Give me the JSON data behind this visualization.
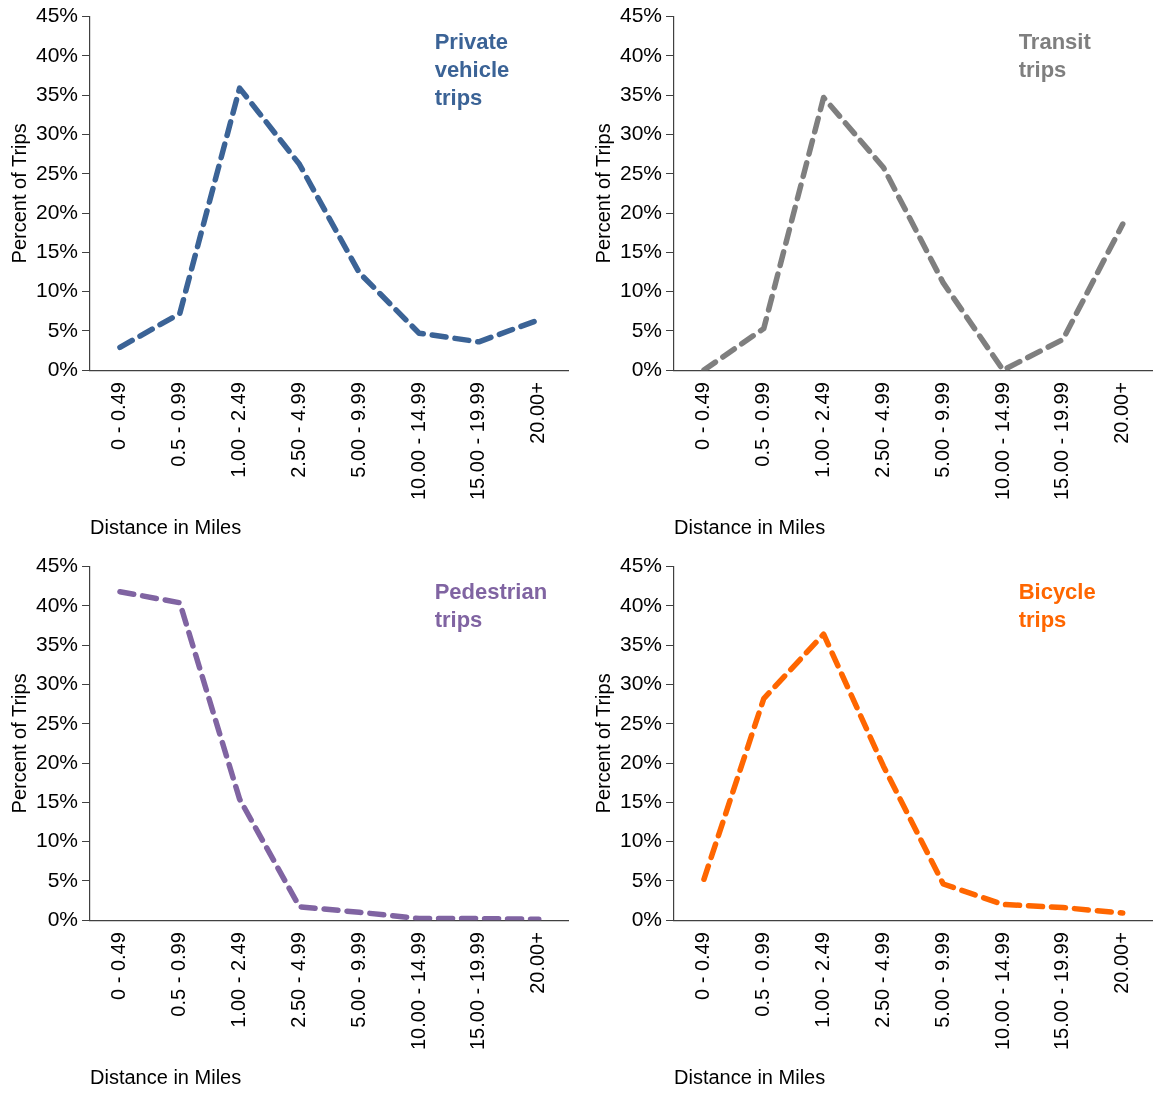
{
  "chart_data": [
    {
      "type": "line",
      "xlabel": "Distance in Miles",
      "ylabel": "Percent of Trips",
      "categories": [
        "0 - 0.49",
        "0.5 - 0.99",
        "1.00 - 2.49",
        "2.50 - 4.99",
        "5.00 - 9.99",
        "10.00 - 14.99",
        "15.00 - 19.99",
        "20.00+"
      ],
      "series": [
        {
          "name": "Private vehicle trips",
          "color": "#3b6396",
          "values": [
            2.9,
            7.2,
            35.9,
            26.2,
            12.4,
            4.7,
            3.6,
            6.4
          ]
        }
      ],
      "ylim": [
        0,
        45
      ],
      "yticks": [
        {
          "value": 0,
          "label": "0%"
        },
        {
          "value": 5,
          "label": "5%"
        },
        {
          "value": 10,
          "label": "10%"
        },
        {
          "value": 15,
          "label": "15%"
        },
        {
          "value": 20,
          "label": "20%"
        },
        {
          "value": 25,
          "label": "25%"
        },
        {
          "value": 30,
          "label": "30%"
        },
        {
          "value": 35,
          "label": "35%"
        },
        {
          "value": 40,
          "label": "40%"
        },
        {
          "value": 45,
          "label": "45%"
        }
      ],
      "grid": false,
      "legend": false,
      "marker": "none",
      "line_style": "dashed"
    },
    {
      "type": "line",
      "xlabel": "Distance in Miles",
      "ylabel": "Percent of Trips",
      "categories": [
        "0 - 0.49",
        "0.5 - 0.99",
        "1.00 - 2.49",
        "2.50 - 4.99",
        "5.00 - 9.99",
        "10.00 - 14.99",
        "15.00 - 19.99",
        "20.00+"
      ],
      "series": [
        {
          "name": "Transit trips",
          "color": "#7f7f7f",
          "values": [
            0,
            5.3,
            34.7,
            25.8,
            11.1,
            0,
            3.9,
            18.6
          ]
        }
      ],
      "ylim": [
        0,
        45
      ],
      "yticks": [
        {
          "value": 0,
          "label": "0%"
        },
        {
          "value": 5,
          "label": "5%"
        },
        {
          "value": 10,
          "label": "10%"
        },
        {
          "value": 15,
          "label": "15%"
        },
        {
          "value": 20,
          "label": "20%"
        },
        {
          "value": 25,
          "label": "25%"
        },
        {
          "value": 30,
          "label": "30%"
        },
        {
          "value": 35,
          "label": "35%"
        },
        {
          "value": 40,
          "label": "40%"
        },
        {
          "value": 45,
          "label": "45%"
        }
      ],
      "grid": false,
      "legend": false,
      "marker": "none",
      "line_style": "dashed"
    },
    {
      "type": "line",
      "xlabel": "Distance in Miles",
      "ylabel": "Percent of Trips",
      "categories": [
        "0 - 0.49",
        "0.5 - 0.99",
        "1.00 - 2.49",
        "2.50 - 4.99",
        "5.00 - 9.99",
        "10.00 - 14.99",
        "15.00 - 19.99",
        "20.00+"
      ],
      "series": [
        {
          "name": "Pedestrian trips",
          "color": "#8064a2",
          "values": [
            41.8,
            40.4,
            15.4,
            1.7,
            1.0,
            0.2,
            0.2,
            0.1
          ]
        }
      ],
      "ylim": [
        0,
        45
      ],
      "yticks": [
        {
          "value": 0,
          "label": "0%"
        },
        {
          "value": 5,
          "label": "5%"
        },
        {
          "value": 10,
          "label": "10%"
        },
        {
          "value": 15,
          "label": "15%"
        },
        {
          "value": 20,
          "label": "20%"
        },
        {
          "value": 25,
          "label": "25%"
        },
        {
          "value": 30,
          "label": "30%"
        },
        {
          "value": 35,
          "label": "35%"
        },
        {
          "value": 40,
          "label": "40%"
        },
        {
          "value": 45,
          "label": "45%"
        }
      ],
      "grid": false,
      "legend": false,
      "marker": "none",
      "line_style": "dashed"
    },
    {
      "type": "line",
      "xlabel": "Distance in Miles",
      "ylabel": "Percent of Trips",
      "categories": [
        "0 - 0.49",
        "0.5 - 0.99",
        "1.00 - 2.49",
        "2.50 - 4.99",
        "5.00 - 9.99",
        "10.00 - 14.99",
        "15.00 - 19.99",
        "20.00+"
      ],
      "series": [
        {
          "name": "Bicycle trips",
          "color": "#ff6600",
          "values": [
            5.2,
            28.2,
            36.4,
            19.6,
            4.6,
            2.0,
            1.6,
            0.9
          ]
        }
      ],
      "ylim": [
        0,
        45
      ],
      "yticks": [
        {
          "value": 0,
          "label": "0%"
        },
        {
          "value": 5,
          "label": "5%"
        },
        {
          "value": 10,
          "label": "10%"
        },
        {
          "value": 15,
          "label": "15%"
        },
        {
          "value": 20,
          "label": "20%"
        },
        {
          "value": 25,
          "label": "25%"
        },
        {
          "value": 30,
          "label": "30%"
        },
        {
          "value": 35,
          "label": "35%"
        },
        {
          "value": 40,
          "label": "40%"
        },
        {
          "value": 45,
          "label": "45%"
        }
      ],
      "grid": false,
      "legend": false,
      "marker": "none",
      "line_style": "dashed"
    }
  ]
}
